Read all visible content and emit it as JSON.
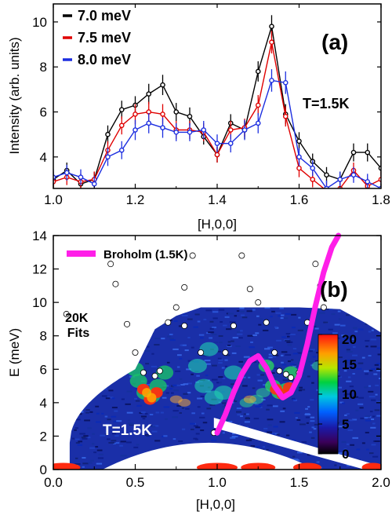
{
  "chart_data": [
    {
      "panel": "(a)",
      "type": "line",
      "xlabel": "[H,0,0]",
      "ylabel": "Intensity (arb. units)",
      "xlim": [
        1.0,
        1.8
      ],
      "ylim": [
        2.6,
        10.8
      ],
      "xticks": [
        "1.0",
        "1.2",
        "1.4",
        "1.6",
        "1.8"
      ],
      "yticks": [
        "4",
        "6",
        "8",
        "10"
      ],
      "annotation": "T=1.5K",
      "legend_position": "top-left",
      "x": [
        1.0,
        1.033,
        1.067,
        1.1,
        1.133,
        1.167,
        1.2,
        1.233,
        1.267,
        1.3,
        1.333,
        1.367,
        1.4,
        1.433,
        1.467,
        1.5,
        1.533,
        1.567,
        1.6,
        1.633,
        1.667,
        1.7,
        1.733,
        1.767,
        1.8
      ],
      "series": [
        {
          "name": "7.0 meV",
          "color": "#000000",
          "values": [
            3.0,
            3.4,
            2.8,
            3.0,
            5.0,
            6.1,
            6.3,
            6.8,
            7.2,
            6.0,
            5.8,
            4.9,
            4.1,
            5.5,
            5.2,
            7.8,
            9.8,
            5.9,
            4.7,
            3.8,
            3.2,
            3.0,
            4.2,
            4.2,
            3.5
          ],
          "errors": [
            0.35,
            0.35,
            0.35,
            0.35,
            0.4,
            0.4,
            0.4,
            0.45,
            0.45,
            0.4,
            0.4,
            0.35,
            0.35,
            0.4,
            0.4,
            0.45,
            0.5,
            0.45,
            0.4,
            0.35,
            0.35,
            0.35,
            0.4,
            0.4,
            0.35
          ]
        },
        {
          "name": "7.5 meV",
          "color": "#e00000",
          "values": [
            2.9,
            3.1,
            2.9,
            3.0,
            4.3,
            5.4,
            5.9,
            6.0,
            5.9,
            5.2,
            5.2,
            5.1,
            4.1,
            5.2,
            5.3,
            6.3,
            9.1,
            5.8,
            3.5,
            3.0,
            2.5,
            2.6,
            3.4,
            2.7,
            3.0
          ],
          "errors": [
            0.35,
            0.35,
            0.35,
            0.35,
            0.4,
            0.4,
            0.45,
            0.45,
            0.45,
            0.4,
            0.4,
            0.4,
            0.35,
            0.4,
            0.4,
            0.45,
            0.5,
            0.45,
            0.4,
            0.35,
            0.35,
            0.35,
            0.35,
            0.35,
            0.35
          ]
        },
        {
          "name": "8.0 meV",
          "color": "#1c2ee0",
          "values": [
            3.1,
            3.3,
            3.1,
            2.8,
            4.0,
            4.3,
            5.2,
            5.5,
            5.3,
            5.1,
            5.1,
            5.2,
            4.6,
            4.6,
            5.2,
            5.5,
            7.4,
            7.3,
            4.0,
            3.5,
            2.6,
            3.0,
            3.2,
            2.9,
            2.6
          ],
          "errors": [
            0.35,
            0.35,
            0.35,
            0.35,
            0.4,
            0.4,
            0.45,
            0.45,
            0.45,
            0.4,
            0.4,
            0.4,
            0.4,
            0.4,
            0.45,
            0.45,
            0.5,
            0.5,
            0.4,
            0.35,
            0.35,
            0.35,
            0.35,
            0.35,
            0.35
          ]
        }
      ]
    },
    {
      "panel": "(b)",
      "type": "heatmap",
      "xlabel": "[H,0,0]",
      "ylabel": "E (meV)",
      "xlim": [
        0.0,
        2.0
      ],
      "ylim": [
        0,
        14
      ],
      "xticks": [
        "0.0",
        "0.5",
        "1.0",
        "1.5",
        "2.0"
      ],
      "yticks": [
        "0",
        "2",
        "4",
        "6",
        "8",
        "10",
        "12",
        "14"
      ],
      "annotation": "T=1.5K",
      "colorbar": {
        "min": 0,
        "max": 20,
        "ticks": [
          "0",
          "5",
          "10",
          "15",
          "20"
        ]
      },
      "fits_label": "20K\nFits",
      "broholm": {
        "name": "Broholm (1.5K)",
        "color": "#ff1fe8",
        "points": [
          [
            1.0,
            2.2
          ],
          [
            1.05,
            3.3
          ],
          [
            1.1,
            4.6
          ],
          [
            1.15,
            5.7
          ],
          [
            1.2,
            6.5
          ],
          [
            1.25,
            6.8
          ],
          [
            1.3,
            6.1
          ],
          [
            1.35,
            5.0
          ],
          [
            1.4,
            4.3
          ],
          [
            1.45,
            4.6
          ],
          [
            1.5,
            5.6
          ],
          [
            1.55,
            7.5
          ],
          [
            1.6,
            9.8
          ],
          [
            1.65,
            11.8
          ],
          [
            1.7,
            13.3
          ],
          [
            1.74,
            14.0
          ]
        ]
      },
      "fits_20K": [
        [
          0.08,
          9.3
        ],
        [
          0.35,
          12.3
        ],
        [
          0.38,
          11.1
        ],
        [
          0.45,
          8.7
        ],
        [
          0.5,
          7.0
        ],
        [
          0.55,
          5.8
        ],
        [
          0.62,
          5.6
        ],
        [
          0.65,
          5.9
        ],
        [
          0.7,
          8.8
        ],
        [
          0.75,
          9.7
        ],
        [
          0.8,
          10.9
        ],
        [
          0.85,
          12.8
        ],
        [
          0.8,
          8.6
        ],
        [
          0.9,
          7.0
        ],
        [
          0.98,
          2.2
        ],
        [
          1.05,
          7.0
        ],
        [
          1.1,
          8.6
        ],
        [
          1.15,
          12.8
        ],
        [
          1.2,
          10.8
        ],
        [
          1.25,
          10.0
        ],
        [
          1.3,
          8.8
        ],
        [
          1.35,
          7.0
        ],
        [
          1.38,
          5.9
        ],
        [
          1.42,
          5.7
        ],
        [
          1.45,
          5.5
        ],
        [
          1.5,
          5.8
        ],
        [
          1.55,
          8.8
        ],
        [
          1.6,
          12.3
        ],
        [
          1.63,
          11.0
        ],
        [
          1.65,
          9.7
        ]
      ]
    }
  ]
}
